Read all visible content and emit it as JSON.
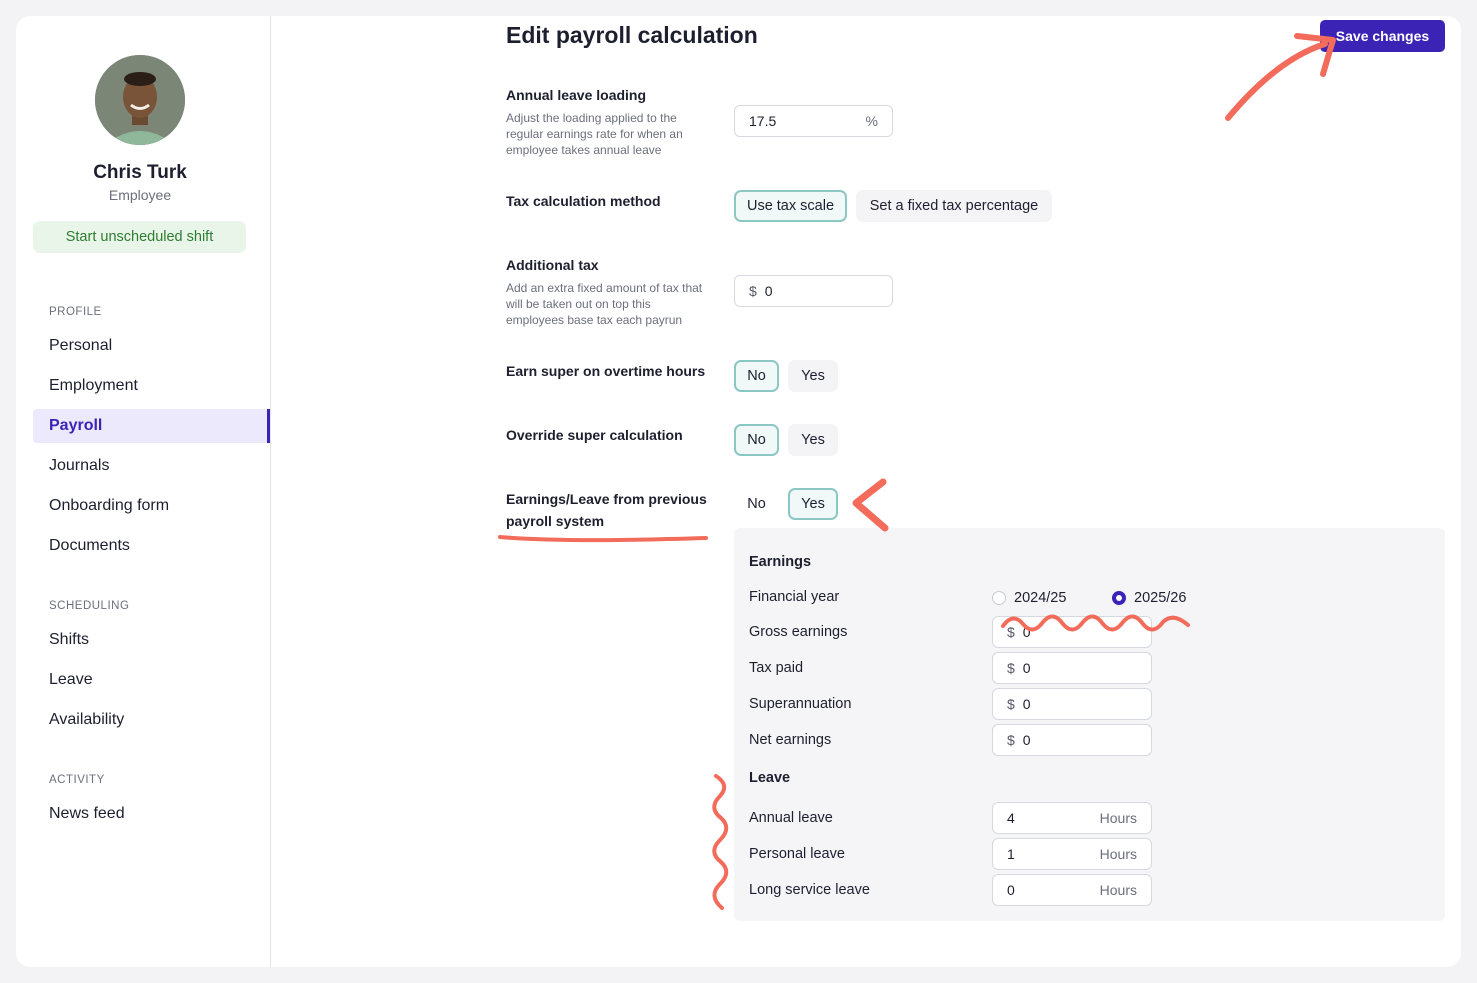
{
  "profile": {
    "name": "Chris Turk",
    "role": "Employee",
    "start_shift_label": "Start unscheduled shift"
  },
  "nav": {
    "profile_heading": "PROFILE",
    "profile_items": [
      "Personal",
      "Employment",
      "Payroll",
      "Journals",
      "Onboarding form",
      "Documents"
    ],
    "scheduling_heading": "SCHEDULING",
    "scheduling_items": [
      "Shifts",
      "Leave",
      "Availability"
    ],
    "activity_heading": "ACTIVITY",
    "activity_items": [
      "News feed"
    ],
    "active_item": "Payroll"
  },
  "page": {
    "title": "Edit payroll calculation",
    "save_label": "Save changes"
  },
  "annual_leave": {
    "label": "Annual leave loading",
    "help": "Adjust the loading applied to the regular earnings rate for when an employee takes annual leave",
    "value": "17.5",
    "suffix": "%"
  },
  "tax_method": {
    "label": "Tax calculation method",
    "options": [
      "Use tax scale",
      "Set a fixed tax percentage"
    ],
    "selected": "Use tax scale"
  },
  "additional_tax": {
    "label": "Additional tax",
    "help": "Add an extra fixed amount of tax that will be taken out on top this employees base tax each payrun",
    "prefix": "$",
    "value": "0"
  },
  "super_overtime": {
    "label": "Earn super on overtime hours",
    "options": [
      "No",
      "Yes"
    ],
    "selected": "No"
  },
  "override_super": {
    "label": "Override super calculation",
    "options": [
      "No",
      "Yes"
    ],
    "selected": "No"
  },
  "previous_payroll": {
    "label": "Earnings/Leave from previous payroll system",
    "options": [
      "No",
      "Yes"
    ],
    "selected": "Yes"
  },
  "earnings": {
    "heading": "Earnings",
    "financial_year_label": "Financial year",
    "years": [
      "2024/25",
      "2025/26"
    ],
    "selected_year": "2025/26",
    "fields": [
      {
        "label": "Gross earnings",
        "prefix": "$",
        "value": "0"
      },
      {
        "label": "Tax paid",
        "prefix": "$",
        "value": "0"
      },
      {
        "label": "Superannuation",
        "prefix": "$",
        "value": "0"
      },
      {
        "label": "Net earnings",
        "prefix": "$",
        "value": "0"
      }
    ]
  },
  "leave": {
    "heading": "Leave",
    "fields": [
      {
        "label": "Annual leave",
        "value": "4",
        "suffix": "Hours"
      },
      {
        "label": "Personal leave",
        "value": "1",
        "suffix": "Hours"
      },
      {
        "label": "Long service leave",
        "value": "0",
        "suffix": "Hours"
      }
    ]
  },
  "colors": {
    "accent": "#3b24b5",
    "annotation": "#f26b5b",
    "selected_border": "#8cc7c4",
    "success": "#2e7d32"
  }
}
